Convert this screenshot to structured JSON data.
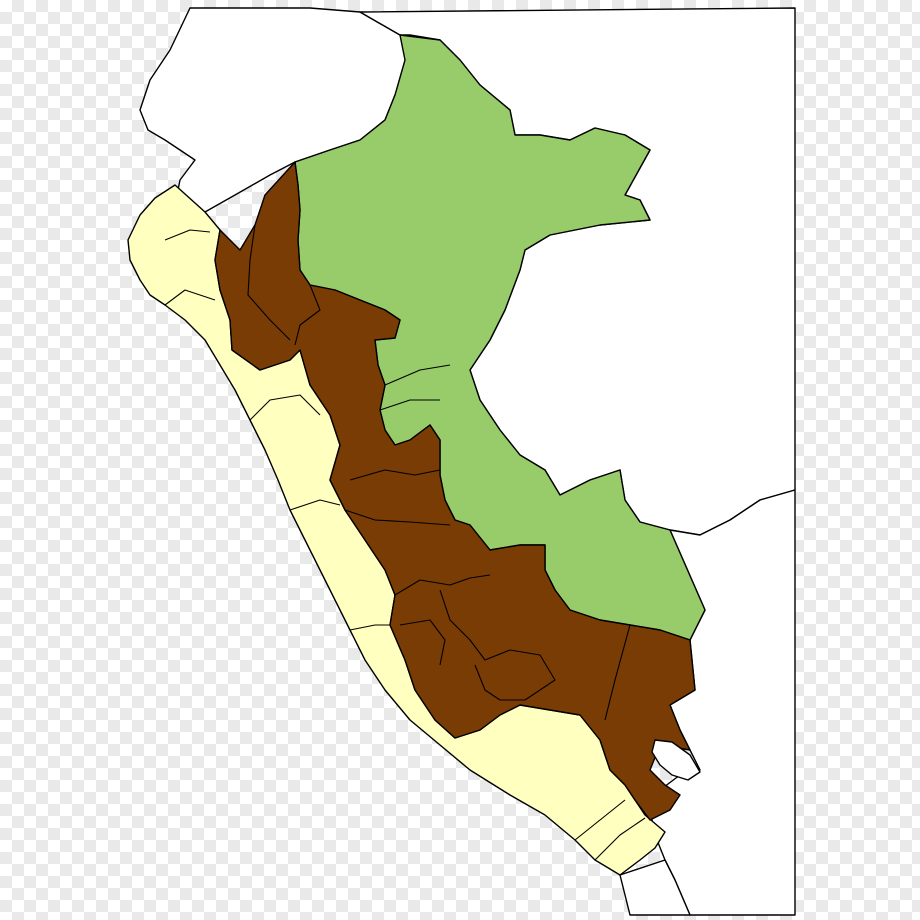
{
  "map": {
    "regions": {
      "costa": {
        "color": "#ffffc0"
      },
      "sierra": {
        "color": "#7a3c05"
      },
      "selva": {
        "color": "#98cc6a"
      },
      "neighbor": {
        "color": "#ffffff"
      }
    }
  }
}
